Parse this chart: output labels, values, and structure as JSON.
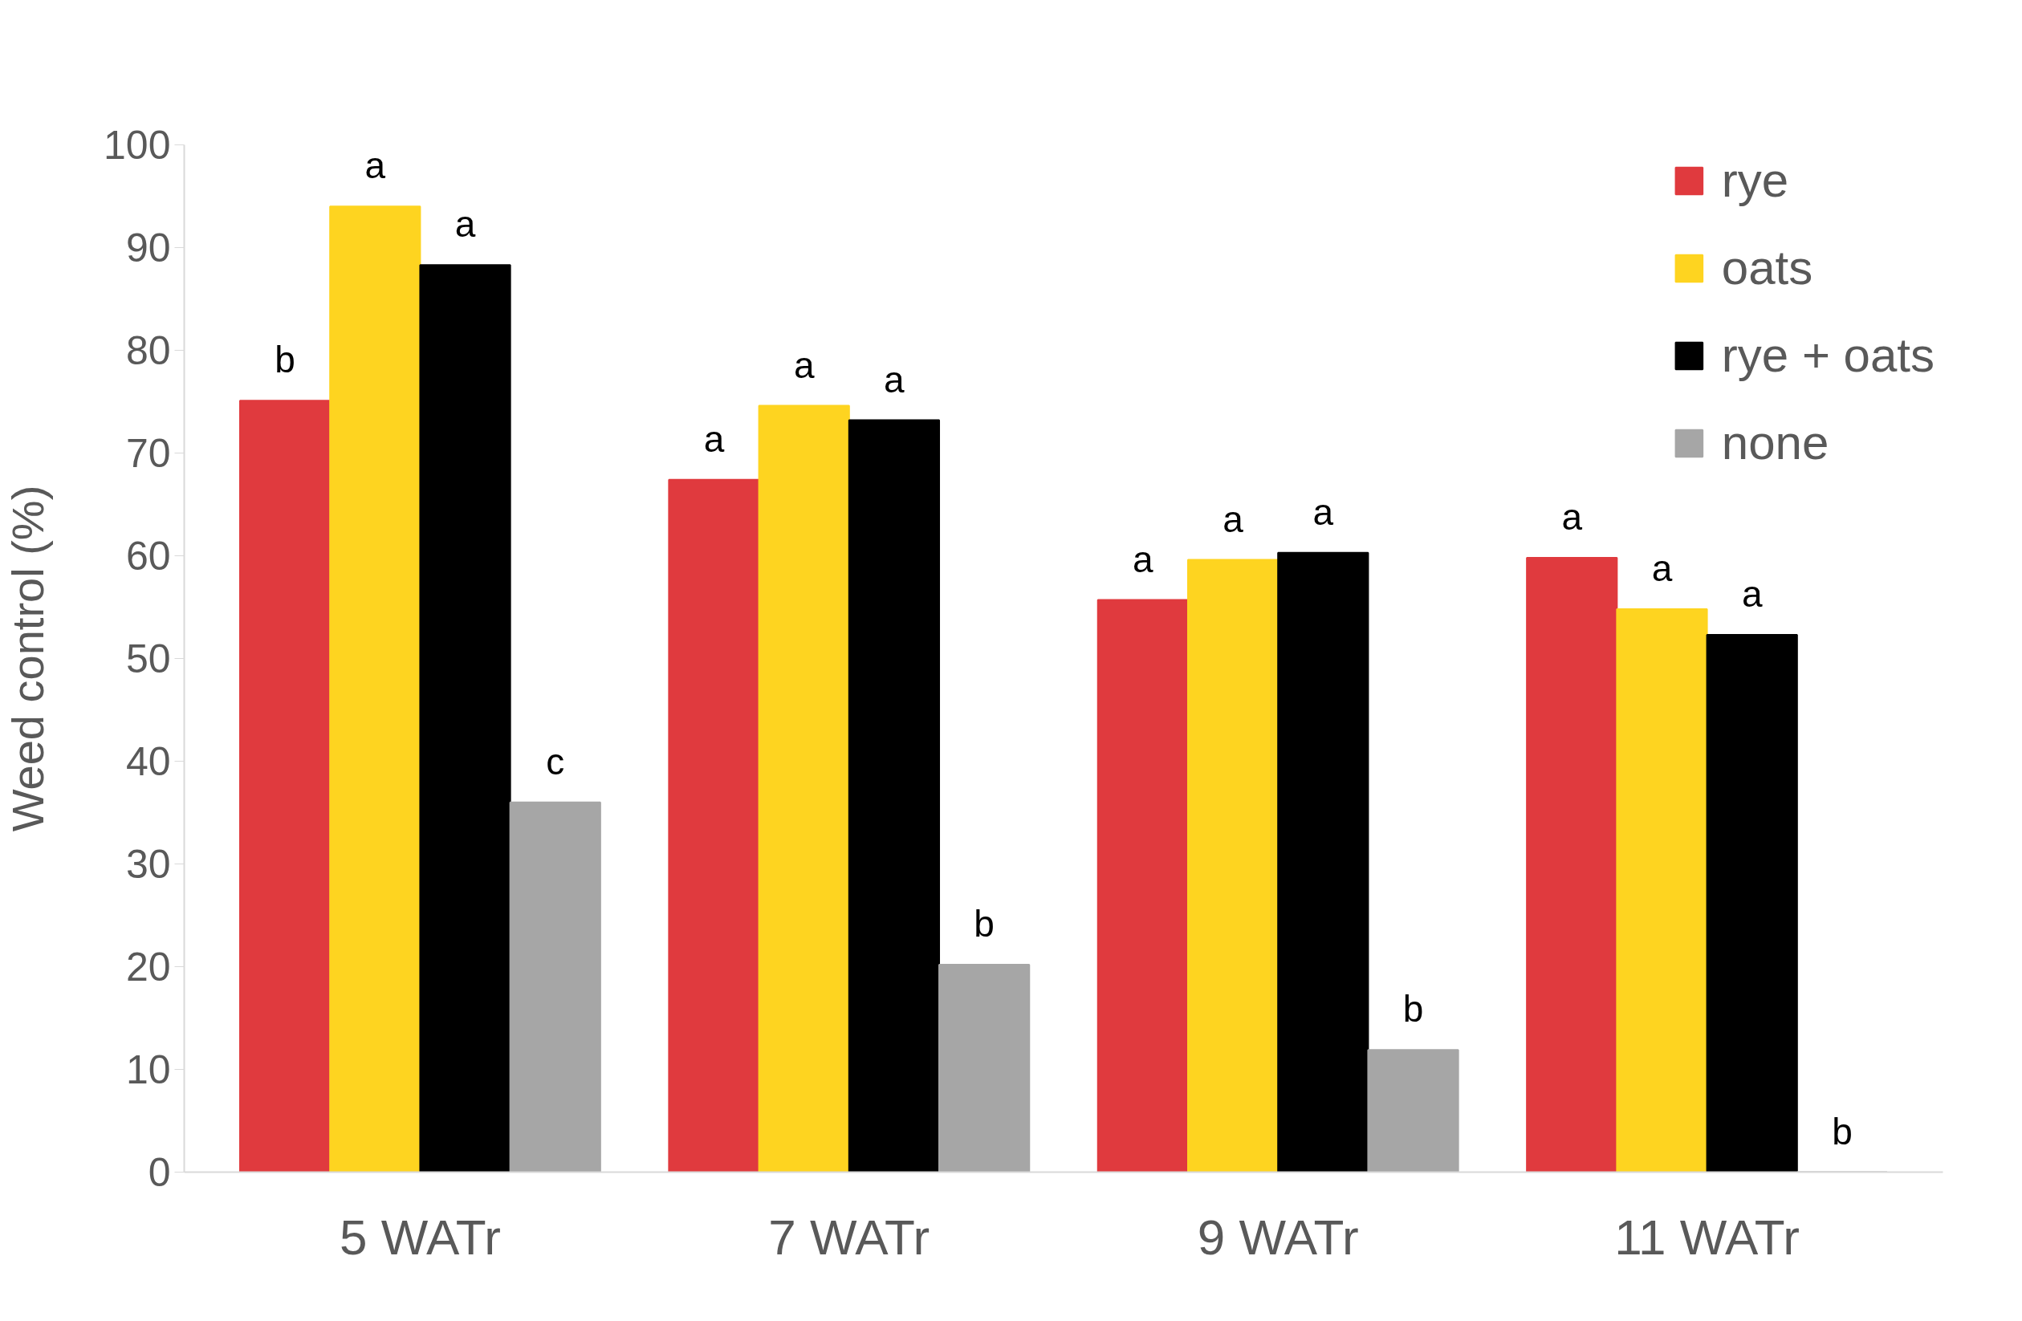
{
  "chart_data": {
    "type": "bar",
    "ylabel": "Weed control (%)",
    "categories": [
      "5 WATr",
      "7 WATr",
      "9 WATr",
      "11 WATr"
    ],
    "series": [
      {
        "name": "rye",
        "color": "#e03a3e",
        "values": [
          75.1,
          67.4,
          55.7,
          59.8
        ],
        "value_labels": [
          "b",
          "a",
          "a",
          "a"
        ]
      },
      {
        "name": "oats",
        "color": "#fed420",
        "values": [
          94.0,
          74.6,
          59.6,
          54.8
        ],
        "value_labels": [
          "a",
          "a",
          "a",
          "a"
        ]
      },
      {
        "name": "rye + oats",
        "color": "#000000",
        "values": [
          88.3,
          73.2,
          60.3,
          52.3
        ],
        "value_labels": [
          "a",
          "a",
          "a",
          "a"
        ]
      },
      {
        "name": "none",
        "color": "#a6a6a6",
        "values": [
          36.0,
          20.2,
          11.9,
          0
        ],
        "value_labels": [
          "c",
          "b",
          "b",
          "b"
        ]
      }
    ],
    "ylim": [
      0,
      100
    ],
    "yticks": [
      0,
      10,
      20,
      30,
      40,
      50,
      60,
      70,
      80,
      90,
      100
    ],
    "grid": false,
    "legend": "top right"
  }
}
